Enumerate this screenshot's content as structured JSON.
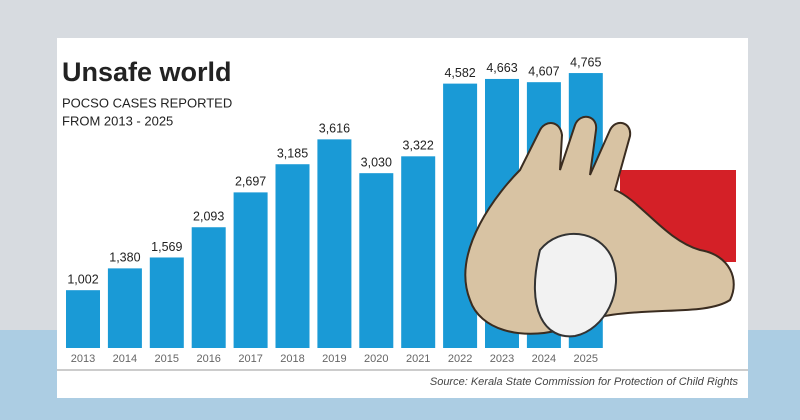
{
  "chart_data": {
    "type": "bar",
    "title": "Unsafe world",
    "subtitle": [
      "POCSO CASES REPORTED",
      "FROM 2013 - 2025"
    ],
    "categories": [
      "2013",
      "2014",
      "2015",
      "2016",
      "2017",
      "2018",
      "2019",
      "2020",
      "2021",
      "2022",
      "2023",
      "2024",
      "2025"
    ],
    "values": [
      1002,
      1380,
      1569,
      2093,
      2697,
      3185,
      3616,
      3030,
      3322,
      4582,
      4663,
      4607,
      4765
    ],
    "value_labels": [
      "1,002",
      "1,380",
      "1,569",
      "2,093",
      "2,697",
      "3,185",
      "3,616",
      "3,030",
      "3,322",
      "4,582",
      "4,663",
      "4,607",
      "4,765"
    ],
    "color": "#1a9ad6",
    "source": "Source: Kerala State Commission for Protection of  Child Rights"
  }
}
